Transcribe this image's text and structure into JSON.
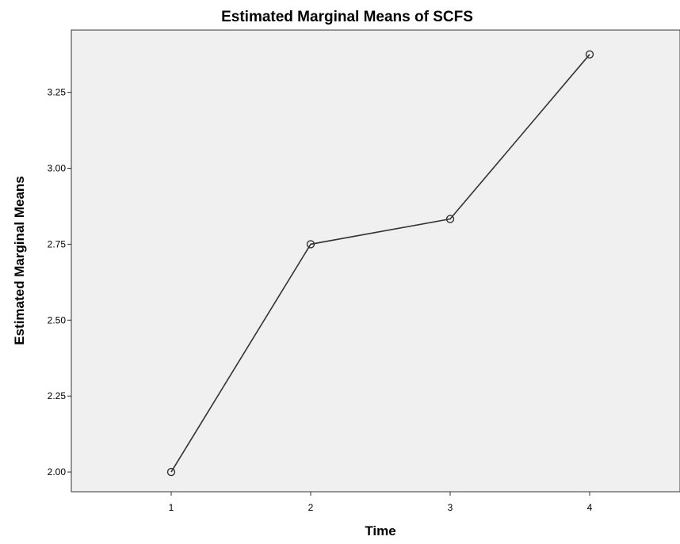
{
  "chart_data": {
    "type": "line",
    "title": "Estimated Marginal Means of SCFS",
    "xlabel": "Time",
    "ylabel": "Estimated Marginal Means",
    "categories": [
      "1",
      "2",
      "3",
      "4"
    ],
    "series": [
      {
        "values": [
          2.0,
          2.75,
          2.833,
          3.375
        ]
      }
    ],
    "ylim": [
      1.935,
      3.455
    ],
    "yticks": [
      "2.00",
      "2.25",
      "2.50",
      "2.75",
      "3.00",
      "3.25"
    ],
    "grid": false,
    "marker": "open-circle",
    "colors": {
      "plot_background": "#f0f0f0",
      "line": "#333333",
      "frame": "#333333"
    }
  }
}
